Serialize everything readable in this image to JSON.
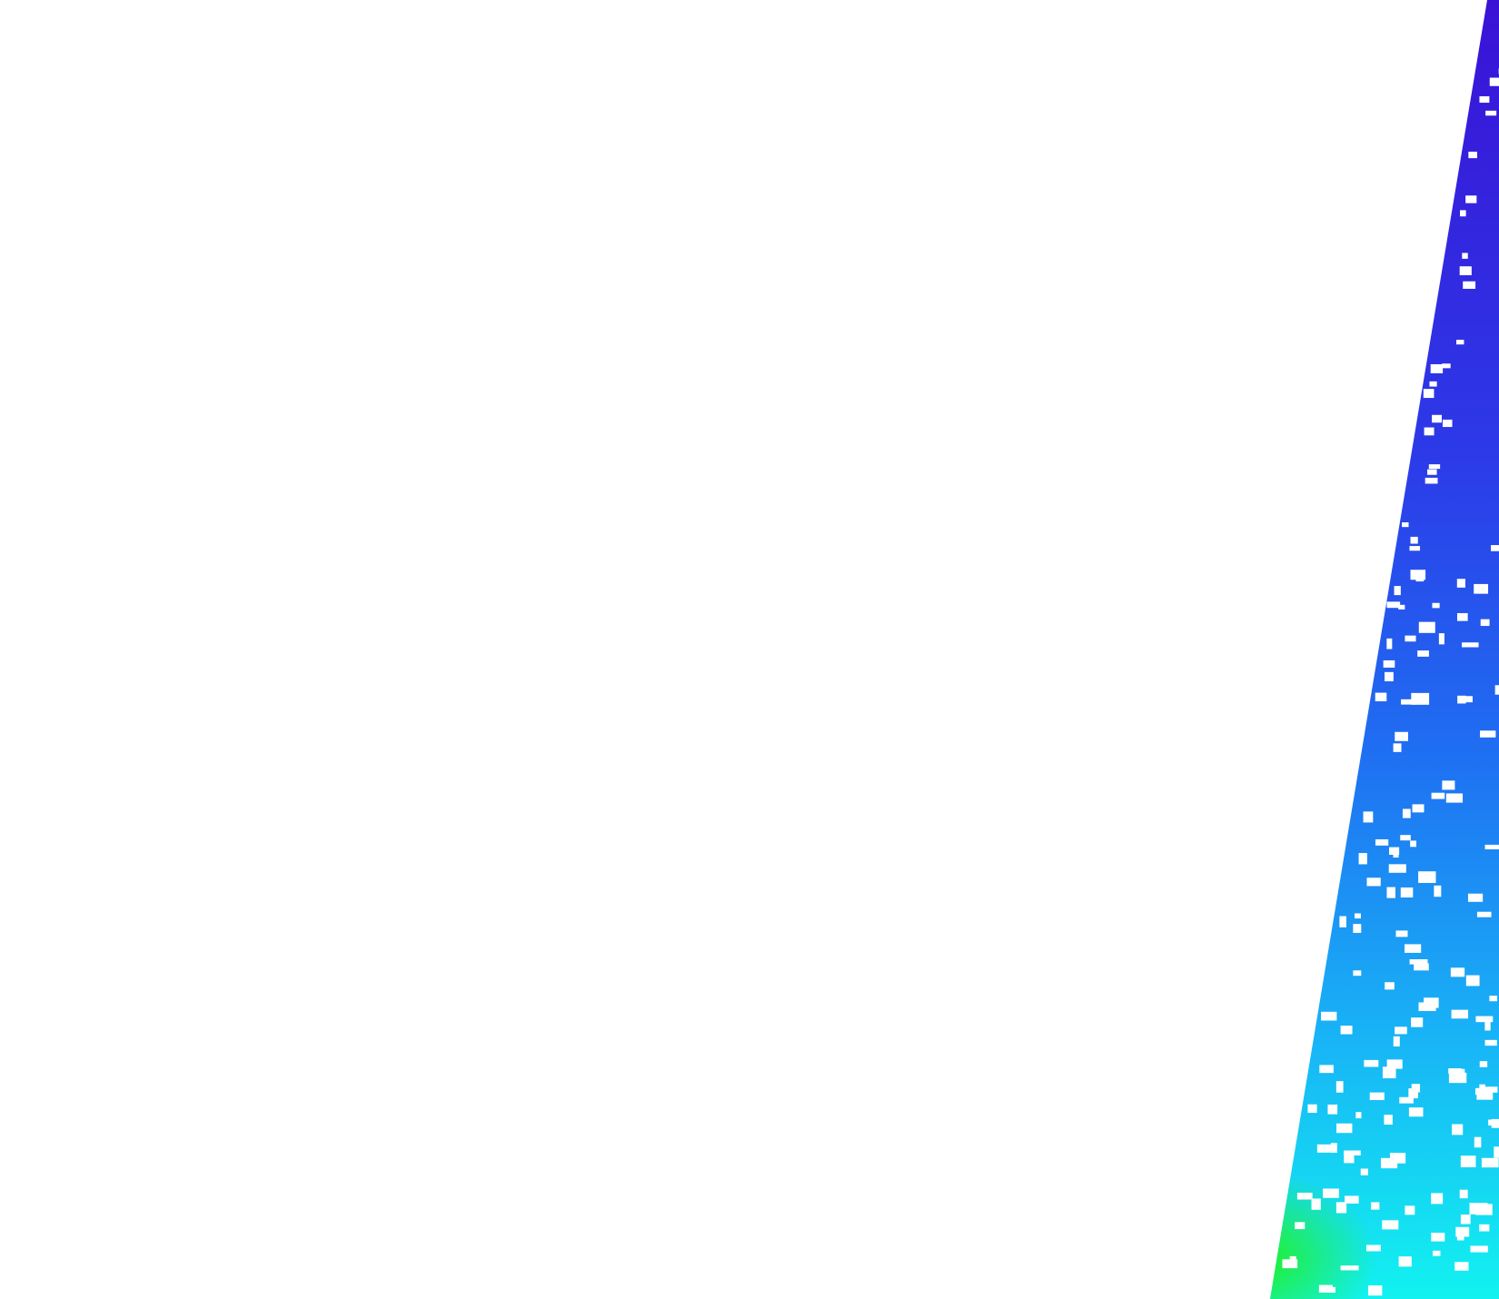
{
  "map": {
    "background_color": "#ffffff",
    "swath_colors": {
      "top": "#3a12d6",
      "upper_mid": "#2c3ae8",
      "mid": "#1f6ff2",
      "lower": "#18b4f6",
      "bottom": "#12f2f0",
      "green_patch": "#22f022",
      "no_data": "#ffffff"
    }
  }
}
